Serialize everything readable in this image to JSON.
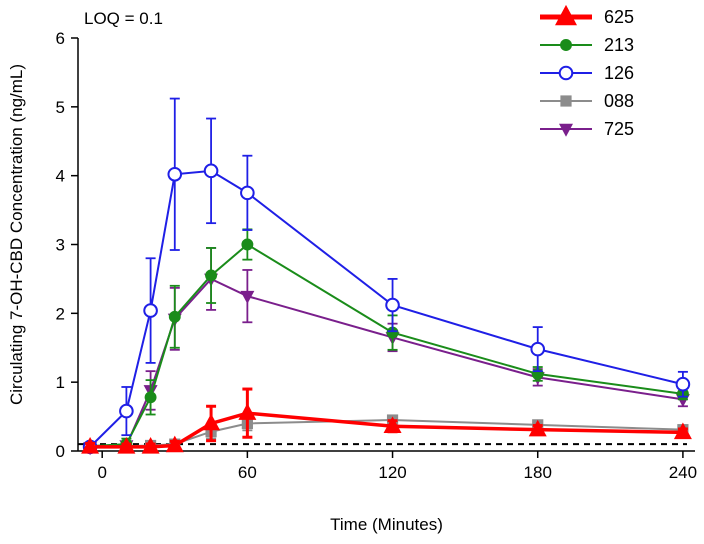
{
  "chart_data": {
    "type": "line",
    "title": "",
    "annotation": "LOQ = 0.1",
    "xlabel": "Time (Minutes)",
    "ylabel": "Circulating 7-OH-CBD Concentration (ng/mL)",
    "xlim": [
      -10,
      245
    ],
    "ylim": [
      0,
      6
    ],
    "xticks": [
      0,
      60,
      120,
      180,
      240
    ],
    "xtick_labels": [
      "0",
      "60",
      "120",
      "180",
      "240"
    ],
    "yticks": [
      0,
      1,
      2,
      3,
      4,
      5,
      6
    ],
    "ytick_labels": [
      "0",
      "1",
      "2",
      "3",
      "4",
      "5",
      "6"
    ],
    "loq_line": 0.1,
    "legend_position": "top-right",
    "grid": false,
    "x": [
      -5,
      10,
      20,
      30,
      45,
      60,
      120,
      180,
      240
    ],
    "series": [
      {
        "name": "625",
        "color": "#ff0000",
        "marker": "triangle-up",
        "values": [
          0.06,
          0.06,
          0.06,
          0.08,
          0.4,
          0.55,
          0.36,
          0.31,
          0.27
        ],
        "error": [
          0.05,
          0.04,
          0.04,
          0.06,
          0.25,
          0.35,
          0.08,
          0.06,
          0.05
        ]
      },
      {
        "name": "213",
        "color": "#1a8c1a",
        "marker": "circle-filled",
        "values": [
          0.07,
          0.1,
          0.78,
          1.95,
          2.55,
          3.0,
          1.72,
          1.12,
          0.83
        ],
        "error": [
          0.04,
          0.08,
          0.25,
          0.45,
          0.4,
          0.22,
          0.25,
          0.1,
          0.08
        ]
      },
      {
        "name": "126",
        "color": "#1f1fe6",
        "marker": "circle-open",
        "values": [
          0.06,
          0.58,
          2.04,
          4.02,
          4.07,
          3.75,
          2.12,
          1.48,
          0.97
        ],
        "error": [
          0.04,
          0.35,
          0.76,
          1.1,
          0.76,
          0.54,
          0.38,
          0.32,
          0.18
        ]
      },
      {
        "name": "088",
        "color": "#8c8c8c",
        "marker": "square",
        "values": [
          0.05,
          0.07,
          0.08,
          0.1,
          0.28,
          0.4,
          0.45,
          0.38,
          0.31
        ],
        "error": [
          0.03,
          0.03,
          0.04,
          0.05,
          0.1,
          0.1,
          0.06,
          0.05,
          0.05
        ]
      },
      {
        "name": "725",
        "color": "#7a1f8c",
        "marker": "triangle-down",
        "values": [
          0.05,
          0.08,
          0.88,
          1.92,
          2.5,
          2.25,
          1.65,
          1.07,
          0.75
        ],
        "error": [
          0.04,
          0.06,
          0.28,
          0.45,
          0.45,
          0.38,
          0.2,
          0.12,
          0.1
        ]
      }
    ]
  }
}
